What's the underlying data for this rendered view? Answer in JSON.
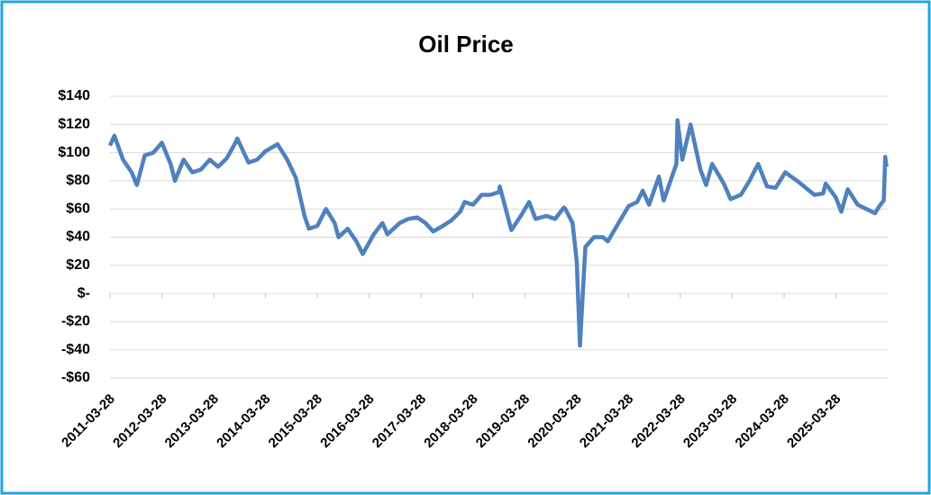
{
  "chart_data": {
    "type": "line",
    "title": "Oil Price",
    "x": [
      "2011-03-28",
      "2011-04-28",
      "2011-06-28",
      "2011-08-28",
      "2011-10-04",
      "2011-11-28",
      "2012-01-28",
      "2012-03-28",
      "2012-05-28",
      "2012-06-28",
      "2012-08-28",
      "2012-10-28",
      "2012-12-28",
      "2013-02-28",
      "2013-04-28",
      "2013-06-28",
      "2013-08-28",
      "2013-09-10",
      "2013-11-28",
      "2014-01-28",
      "2014-03-28",
      "2014-06-20",
      "2014-08-28",
      "2014-10-28",
      "2014-12-28",
      "2015-01-28",
      "2015-03-28",
      "2015-05-28",
      "2015-07-28",
      "2015-08-24",
      "2015-10-28",
      "2015-12-28",
      "2016-02-11",
      "2016-04-28",
      "2016-06-28",
      "2016-08-03",
      "2016-10-28",
      "2016-12-28",
      "2017-02-28",
      "2017-04-28",
      "2017-06-21",
      "2017-08-28",
      "2017-10-28",
      "2017-12-28",
      "2018-01-28",
      "2018-03-28",
      "2018-05-28",
      "2018-07-28",
      "2018-09-28",
      "2018-10-03",
      "2018-12-24",
      "2019-02-28",
      "2019-04-28",
      "2019-06-12",
      "2019-08-28",
      "2019-10-28",
      "2019-12-28",
      "2020-01-08",
      "2020-02-28",
      "2020-03-28",
      "2020-04-20",
      "2020-05-28",
      "2020-07-28",
      "2020-09-28",
      "2020-11-02",
      "2021-01-28",
      "2021-03-28",
      "2021-05-28",
      "2021-07-06",
      "2021-08-20",
      "2021-10-28",
      "2021-12-01",
      "2022-02-28",
      "2022-03-08",
      "2022-04-11",
      "2022-06-08",
      "2022-08-16",
      "2022-09-26",
      "2022-11-07",
      "2023-01-28",
      "2023-03-17",
      "2023-05-28",
      "2023-07-28",
      "2023-09-27",
      "2023-11-28",
      "2024-01-28",
      "2024-04-05",
      "2024-06-28",
      "2024-08-28",
      "2024-10-28",
      "2024-12-28",
      "2025-01-15",
      "2025-03-28",
      "2025-05-05",
      "2025-06-19",
      "2025-08-28",
      "2025-10-28",
      "2025-12-28",
      "2026-01-28",
      "2026-02-28",
      "2026-03-10",
      "2026-03-20"
    ],
    "series": [
      {
        "name": "Oil Price",
        "color": "#4f81bd",
        "values": [
          105,
          112,
          95,
          86,
          77,
          98,
          100,
          107,
          92,
          80,
          95,
          86,
          88,
          95,
          90,
          96,
          107,
          110,
          93,
          95,
          101,
          106,
          95,
          82,
          55,
          46,
          48,
          60,
          50,
          40,
          46,
          37,
          28,
          42,
          50,
          42,
          50,
          53,
          54,
          50,
          44,
          48,
          52,
          58,
          65,
          63,
          70,
          70,
          72,
          76,
          45,
          55,
          65,
          53,
          55,
          53,
          61,
          60,
          50,
          23,
          -37,
          33,
          40,
          40,
          37,
          52,
          62,
          65,
          73,
          63,
          83,
          66,
          92,
          123,
          95,
          120,
          88,
          77,
          92,
          78,
          67,
          70,
          80,
          92,
          76,
          75,
          86,
          80,
          75,
          70,
          71,
          78,
          68,
          58,
          74,
          63,
          60,
          57,
          62,
          66,
          97,
          90
        ]
      }
    ],
    "xlim": [
      "2011-03-28",
      "2026-03-28"
    ],
    "xticks": [
      "2011-03-28",
      "2012-03-28",
      "2013-03-28",
      "2014-03-28",
      "2015-03-28",
      "2016-03-28",
      "2017-03-28",
      "2018-03-28",
      "2019-03-28",
      "2020-03-28",
      "2021-03-28",
      "2022-03-28",
      "2023-03-28",
      "2024-03-28",
      "2025-03-28"
    ],
    "ylim": [
      -60,
      140
    ],
    "yticks": [
      {
        "value": -60,
        "label": "-$60"
      },
      {
        "value": -40,
        "label": "-$40"
      },
      {
        "value": -20,
        "label": "-$20"
      },
      {
        "value": 0,
        "label": "$-"
      },
      {
        "value": 20,
        "label": "$20"
      },
      {
        "value": 40,
        "label": "$40"
      },
      {
        "value": 60,
        "label": "$60"
      },
      {
        "value": 80,
        "label": "$80"
      },
      {
        "value": 100,
        "label": "$100"
      },
      {
        "value": 120,
        "label": "$120"
      },
      {
        "value": 140,
        "label": "$140"
      }
    ],
    "grid": true
  }
}
